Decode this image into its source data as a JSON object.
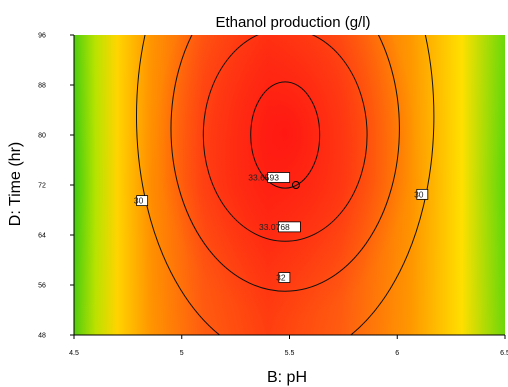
{
  "chart_data": {
    "type": "heatmap",
    "title": "Ethanol production (g/l)",
    "xlabel": "B: pH",
    "ylabel": "D: Time (hr)",
    "xlim": [
      4.5,
      6.5
    ],
    "ylim": [
      48,
      96
    ],
    "x_ticks": [
      "4.5",
      "5",
      "5.5",
      "6",
      "6.5"
    ],
    "y_ticks": [
      "48",
      "56",
      "64",
      "72",
      "80",
      "88",
      "96"
    ],
    "grid": false,
    "colormap": [
      "#2ecc12",
      "#9be000",
      "#ffe800",
      "#ff9a00",
      "#ff4a12",
      "#ff1a12"
    ],
    "optimum": {
      "x": 5.53,
      "y": 72
    },
    "contours": [
      {
        "level": 30,
        "label": "30",
        "center": [
          5.48,
          83
        ],
        "radii": [
          0.69,
          39
        ]
      },
      {
        "level": 32,
        "label": "32",
        "center": [
          5.48,
          81
        ],
        "radii": [
          0.53,
          26
        ]
      },
      {
        "level": 33.0768,
        "label": "33.0768",
        "center": [
          5.48,
          80
        ],
        "radii": [
          0.38,
          17
        ]
      },
      {
        "level": 33.6593,
        "label": "33.6593",
        "center": [
          5.48,
          80
        ],
        "radii": [
          0.16,
          8.5
        ]
      }
    ],
    "labels": [
      {
        "text": "30",
        "x": 4.8,
        "y": 69.5
      },
      {
        "text": "30",
        "x": 6.1,
        "y": 70.5
      },
      {
        "text": "32",
        "x": 5.46,
        "y": 57.2
      },
      {
        "text": "33.0768",
        "x": 5.43,
        "y": 65.3
      },
      {
        "text": "33.6593",
        "x": 5.38,
        "y": 73.2
      }
    ]
  }
}
